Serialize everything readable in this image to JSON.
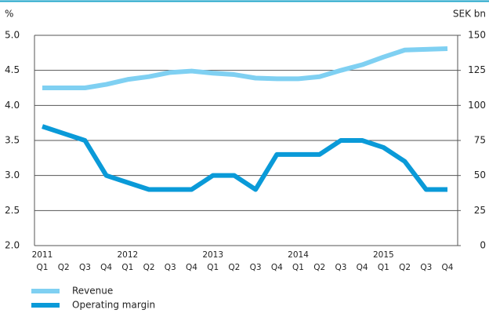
{
  "chart_data": {
    "type": "line",
    "ylabel": "%",
    "y2label": "SEK bn",
    "categories": [
      "Q1",
      "Q2",
      "Q3",
      "Q4",
      "Q1",
      "Q2",
      "Q3",
      "Q4",
      "Q1",
      "Q2",
      "Q3",
      "Q4",
      "Q1",
      "Q2",
      "Q3",
      "Q4",
      "Q1",
      "Q2",
      "Q3",
      "Q4"
    ],
    "years": [
      "2011",
      "2012",
      "2013",
      "2014",
      "2015"
    ],
    "series": [
      {
        "name": "Revenue",
        "color": "#7fd0f2",
        "axis": "y2",
        "values": [
          112.5,
          112.5,
          112.5,
          115,
          118.5,
          120.5,
          123.5,
          124.5,
          123,
          122,
          119.5,
          119,
          119,
          120.5,
          125,
          129,
          134.5,
          139.5,
          140,
          140.5
        ]
      },
      {
        "name": "Operating margin",
        "color": "#0a9ad8",
        "values": [
          3.7,
          3.6,
          3.5,
          3.0,
          2.9,
          2.8,
          2.8,
          2.8,
          3.0,
          3.0,
          2.8,
          3.3,
          3.3,
          3.3,
          3.5,
          3.5,
          3.4,
          3.2,
          2.8,
          2.8
        ]
      }
    ],
    "ylim": [
      2.0,
      5.0
    ],
    "yticks": [
      {
        "value": 2,
        "label": "2.0"
      },
      {
        "value": 2.5,
        "label": "2.5"
      },
      {
        "value": 3,
        "label": "3.0"
      },
      {
        "value": 3.5,
        "label": "3.5"
      },
      {
        "value": 4,
        "label": "4.0"
      },
      {
        "value": 4.5,
        "label": "4.5"
      },
      {
        "value": 5,
        "label": "5.0"
      }
    ],
    "y2lim": [
      0,
      150
    ],
    "y2ticks": [
      0,
      25,
      50,
      75,
      100,
      125,
      150
    ],
    "grid": true
  }
}
